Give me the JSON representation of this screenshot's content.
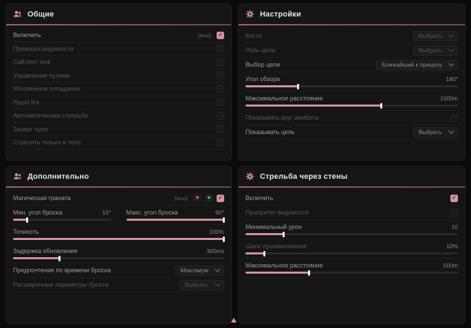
{
  "colors": {
    "accent": "#d6939b",
    "panel_bg": "#151515",
    "page_bg": "#0b0b0b",
    "green": "#7fbf72",
    "red": "#d5707e"
  },
  "icons": {
    "check": "✓",
    "heart_red": "♥",
    "heart_green": "♥"
  },
  "panels": [
    {
      "title": "Общие",
      "icon": "users-icon",
      "rows": [
        {
          "label": "Включить",
          "bind": "[вык]",
          "checked": true
        },
        {
          "label": "Проверка видимости",
          "checked": false
        },
        {
          "label": "Сайлент нож",
          "checked": false
        },
        {
          "label": "Управление пулями",
          "checked": false
        },
        {
          "label": "Мгновенное попадание",
          "checked": false
        },
        {
          "label": "Rapid fire",
          "checked": false
        },
        {
          "label": "Автоматическая стрельба",
          "checked": false
        },
        {
          "label": "Захват пули",
          "checked": false
        },
        {
          "label": "Стрелять только в тело",
          "checked": false
        }
      ]
    },
    {
      "title": "Настройки",
      "icon": "gear-icon",
      "rows": [
        {
          "label": "Кости",
          "value": "Выбрать"
        },
        {
          "label": "Роль цели",
          "value": "Выбрать"
        },
        {
          "label": "Выбор цели",
          "value": "Ближайший к прицелу"
        },
        {
          "label": "Угол обзора",
          "value": "180°",
          "fill": 25
        },
        {
          "label": "Максимальное расстояние",
          "value": "1000m",
          "fill": 64
        },
        {
          "label": "Показывать круг аимбота",
          "checked": false
        },
        {
          "label": "Показывать цель",
          "value": "Выбрать"
        }
      ]
    },
    {
      "title": "Дополнительно",
      "icon": "users-icon",
      "rows": [
        {
          "label": "Магическая граната",
          "bind": "[вык]",
          "checked": true
        },
        {
          "left": {
            "label": "Мин. угол броска",
            "value": "15°",
            "fill": 15
          },
          "right": {
            "label": "Макс. угол броска",
            "value": "90°",
            "fill": 100
          }
        },
        {
          "label": "Точность",
          "value": "100%",
          "fill": 100
        },
        {
          "label": "Задержка обновления",
          "value": "300ms",
          "fill": 22
        },
        {
          "label": "Предпочтение по времени броска",
          "value": "Максимум"
        },
        {
          "label": "Расширенные параметры броска",
          "value": "Выбрать"
        }
      ]
    },
    {
      "title": "Стрельба через стены",
      "icon": "gear-icon",
      "rows": [
        {
          "label": "Включить",
          "checked": true
        },
        {
          "label": "Приоритет видимости",
          "checked": false
        },
        {
          "label": "Минимальный урон",
          "value": "10",
          "fill": 18
        },
        {
          "label": "Шанс проникновения",
          "value": "10%",
          "fill": 9
        },
        {
          "label": "Максимальное расстояние",
          "value": "500m",
          "fill": 30
        }
      ]
    }
  ]
}
